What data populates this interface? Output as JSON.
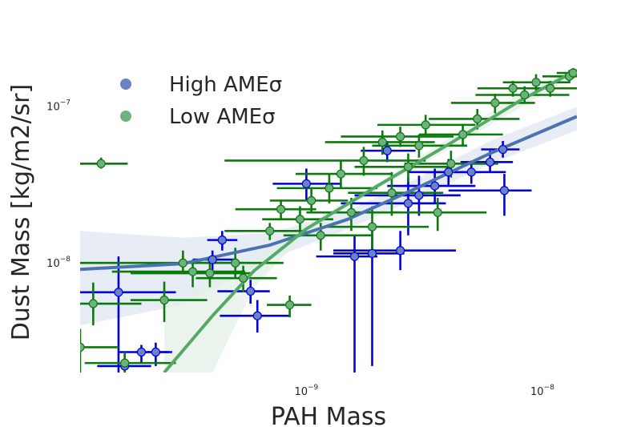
{
  "chart_data": {
    "type": "scatter",
    "xlabel": "PAH Mass",
    "ylabel": "Dust Mass [kg/m2/sr]",
    "xscale": "log",
    "yscale": "log",
    "xlim": [
      1.1e-10,
      1.4e-08
    ],
    "ylim": [
      2e-09,
      1.75e-07
    ],
    "xticks": [
      {
        "value": 1e-09,
        "base": "10",
        "exp": "−9"
      },
      {
        "value": 1e-08,
        "base": "10",
        "exp": "−8"
      }
    ],
    "yticks": [
      {
        "value": 1e-08,
        "base": "10",
        "exp": "−8"
      },
      {
        "value": 1e-07,
        "base": "10",
        "exp": "−7"
      }
    ],
    "grid": false,
    "legend": {
      "position": "top-left"
    },
    "series": [
      {
        "name": "High AMEσ",
        "marker_color": "#6a83c4",
        "errorbar_color": "#0000dd",
        "fit_color": "#4c72b0",
        "band_color": "#dfe5f1",
        "points": [
          {
            "x": 1.6e-10,
            "y": 6.5e-09,
            "xerr": [
              1.1e-10,
              2.8e-10
            ],
            "yerr": [
              2e-09,
              1.1e-08
            ]
          },
          {
            "x": 1.7e-10,
            "y": 2.2e-09,
            "xerr": [
              1.3e-10,
              2.2e-10
            ],
            "yerr": [
              2e-09,
              2.6e-09
            ]
          },
          {
            "x": 2e-10,
            "y": 2.7e-09,
            "xerr": [
              1.6e-10,
              2.6e-10
            ],
            "yerr": [
              2.3e-09,
              3e-09
            ]
          },
          {
            "x": 2.3e-10,
            "y": 2.7e-09,
            "xerr": [
              1.9e-10,
              2.7e-10
            ],
            "yerr": [
              2.2e-09,
              3.1e-09
            ]
          },
          {
            "x": 4.4e-10,
            "y": 1.4e-08,
            "xerr": [
              3.8e-10,
              5.1e-10
            ],
            "yerr": [
              1.2e-08,
              1.6e-08
            ]
          },
          {
            "x": 4e-10,
            "y": 1.05e-08,
            "xerr": [
              3.3e-10,
              5e-10
            ],
            "yerr": [
              9e-09,
              1.2e-08
            ]
          },
          {
            "x": 5.8e-10,
            "y": 6.6e-09,
            "xerr": [
              4.2e-10,
              7e-10
            ],
            "yerr": [
              5.5e-09,
              7.8e-09
            ]
          },
          {
            "x": 6.2e-10,
            "y": 4.6e-09,
            "xerr": [
              4.3e-10,
              8.5e-10
            ],
            "yerr": [
              3.6e-09,
              5.8e-09
            ]
          },
          {
            "x": 1.6e-09,
            "y": 1.1e-08,
            "xerr": [
              1.1e-09,
              2e-09
            ],
            "yerr": [
              2e-09,
              1.5e-08
            ]
          },
          {
            "x": 1.9e-09,
            "y": 1.15e-08,
            "xerr": [
              1.3e-09,
              2.6e-09
            ],
            "yerr": [
              2.2e-09,
              1.6e-08
            ]
          },
          {
            "x": 2.5e-09,
            "y": 1.2e-08,
            "xerr": [
              1.3e-09,
              4.3e-09
            ],
            "yerr": [
              9e-09,
              1.6e-08
            ]
          },
          {
            "x": 2.7e-09,
            "y": 2.4e-08,
            "xerr": [
              1.4e-09,
              3.9e-09
            ],
            "yerr": [
              1.5e-08,
              3.5e-08
            ]
          },
          {
            "x": 3e-09,
            "y": 2.7e-08,
            "xerr": [
              1.6e-09,
              4.5e-09
            ],
            "yerr": [
              2e-08,
              3.6e-08
            ]
          },
          {
            "x": 3.5e-09,
            "y": 3.1e-08,
            "xerr": [
              2.2e-09,
              5.2e-09
            ],
            "yerr": [
              2.4e-08,
              4e-08
            ]
          },
          {
            "x": 4e-09,
            "y": 3.8e-08,
            "xerr": [
              2.7e-09,
              5.5e-09
            ],
            "yerr": [
              3.1e-08,
              4.6e-08
            ]
          },
          {
            "x": 5e-09,
            "y": 3.8e-08,
            "xerr": [
              3.2e-09,
              7e-09
            ],
            "yerr": [
              3.2e-08,
              4.5e-08
            ]
          },
          {
            "x": 6e-09,
            "y": 4.4e-08,
            "xerr": [
              4.5e-09,
              7.5e-09
            ],
            "yerr": [
              3.8e-08,
              5.2e-08
            ]
          },
          {
            "x": 6.8e-09,
            "y": 5.3e-08,
            "xerr": [
              5.5e-09,
              8e-09
            ],
            "yerr": [
              4.7e-08,
              6e-08
            ]
          },
          {
            "x": 6.9e-09,
            "y": 2.9e-08,
            "xerr": [
              4e-09,
              9e-09
            ],
            "yerr": [
              2e-08,
              3.7e-08
            ]
          },
          {
            "x": 1e-09,
            "y": 3.2e-08,
            "xerr": [
              7.2e-10,
              1.4e-09
            ],
            "yerr": [
              2.5e-08,
              4e-08
            ]
          },
          {
            "x": 2.2e-09,
            "y": 5.2e-08,
            "xerr": [
              1.7e-09,
              2.9e-09
            ],
            "yerr": [
              4.4e-08,
              6e-08
            ]
          }
        ],
        "fit_line": [
          {
            "x": 1.1e-10,
            "y": 9.1e-09
          },
          {
            "x": 3e-10,
            "y": 9.9e-09
          },
          {
            "x": 7e-10,
            "y": 1.3e-08
          },
          {
            "x": 1.5e-09,
            "y": 1.9e-08
          },
          {
            "x": 3e-09,
            "y": 3.05e-08
          },
          {
            "x": 6e-09,
            "y": 5e-08
          },
          {
            "x": 1.4e-08,
            "y": 8.6e-08
          }
        ],
        "band_upper": [
          {
            "x": 1.1e-10,
            "y": 1.6e-08
          },
          {
            "x": 3e-10,
            "y": 1.45e-08
          },
          {
            "x": 7e-10,
            "y": 1.55e-08
          },
          {
            "x": 1.5e-09,
            "y": 2.15e-08
          },
          {
            "x": 3e-09,
            "y": 3.5e-08
          },
          {
            "x": 6e-09,
            "y": 6e-08
          },
          {
            "x": 1.4e-08,
            "y": 9.9e-08
          }
        ],
        "band_lower": [
          {
            "x": 1.1e-10,
            "y": 4e-09
          },
          {
            "x": 3e-10,
            "y": 5.4e-09
          },
          {
            "x": 7e-10,
            "y": 1.05e-08
          },
          {
            "x": 1.5e-09,
            "y": 1.65e-08
          },
          {
            "x": 3e-09,
            "y": 2.6e-08
          },
          {
            "x": 6e-09,
            "y": 4.3e-08
          },
          {
            "x": 1.4e-08,
            "y": 7e-08
          }
        ]
      },
      {
        "name": "Low AMEσ",
        "marker_color": "#6fb07f",
        "errorbar_color": "#0a7a0a",
        "fit_color": "#55a868",
        "band_color": "#e3f0e5",
        "points": [
          {
            "x": 1.1e-10,
            "y": 2.9e-09,
            "xerr": [
              1.1e-10,
              1.6e-10
            ],
            "yerr": [
              2e-09,
              3.8e-09
            ]
          },
          {
            "x": 1.25e-10,
            "y": 5.5e-09,
            "xerr": [
              1.1e-10,
              2e-10
            ],
            "yerr": [
              4e-09,
              7.5e-09
            ]
          },
          {
            "x": 1.35e-10,
            "y": 4.3e-08,
            "xerr": [
              1.1e-10,
              1.75e-10
            ],
            "yerr": [
              4e-08,
              4.7e-08
            ]
          },
          {
            "x": 1.7e-10,
            "y": 2.3e-09,
            "xerr": [
              1.15e-10,
              2.8e-10
            ],
            "yerr": [
              2e-09,
              2.7e-09
            ]
          },
          {
            "x": 2.5e-10,
            "y": 5.8e-09,
            "xerr": [
              1.8e-10,
              3.8e-10
            ],
            "yerr": [
              4.2e-09,
              7.6e-09
            ]
          },
          {
            "x": 3e-10,
            "y": 1e-08,
            "xerr": [
              1.1e-10,
              5.8e-10
            ],
            "yerr": [
              8.5e-09,
              1.2e-08
            ]
          },
          {
            "x": 3.3e-10,
            "y": 8.8e-09,
            "xerr": [
              1.5e-10,
              5.5e-10
            ],
            "yerr": [
              7e-09,
              1.05e-08
            ]
          },
          {
            "x": 3.9e-10,
            "y": 8.6e-09,
            "xerr": [
              1.8e-10,
              5.8e-10
            ],
            "yerr": [
              7e-09,
              1.06e-08
            ]
          },
          {
            "x": 5e-10,
            "y": 1e-08,
            "xerr": [
              3e-10,
              8e-10
            ],
            "yerr": [
              8e-09,
              1.25e-08
            ]
          },
          {
            "x": 5.4e-10,
            "y": 8e-09,
            "xerr": [
              3.4e-10,
              7.5e-10
            ],
            "yerr": [
              6.5e-09,
              9.6e-09
            ]
          },
          {
            "x": 7e-10,
            "y": 1.6e-08,
            "xerr": [
              4.5e-10,
              1e-09
            ],
            "yerr": [
              1.4e-08,
              1.8e-08
            ]
          },
          {
            "x": 7.8e-10,
            "y": 2.2e-08,
            "xerr": [
              5e-10,
              1.1e-09
            ],
            "yerr": [
              1.9e-08,
              2.5e-08
            ]
          },
          {
            "x": 8.5e-10,
            "y": 5.4e-09,
            "xerr": [
              6.8e-10,
              1.05e-09
            ],
            "yerr": [
              4.5e-09,
              6.2e-09
            ]
          },
          {
            "x": 9.4e-10,
            "y": 1.9e-08,
            "xerr": [
              6.5e-10,
              1.3e-09
            ],
            "yerr": [
              1.5e-08,
              2.3e-08
            ]
          },
          {
            "x": 1.05e-09,
            "y": 2.5e-08,
            "xerr": [
              7e-10,
              1.5e-09
            ],
            "yerr": [
              2.1e-08,
              3e-08
            ]
          },
          {
            "x": 1.15e-09,
            "y": 1.5e-08,
            "xerr": [
              8e-10,
              1.9e-09
            ],
            "yerr": [
              1.2e-08,
              1.8e-08
            ]
          },
          {
            "x": 1.25e-09,
            "y": 3e-08,
            "xerr": [
              7.5e-10,
              2e-09
            ],
            "yerr": [
              2.4e-08,
              3.7e-08
            ]
          },
          {
            "x": 1.4e-09,
            "y": 3.7e-08,
            "xerr": [
              9e-10,
              2.3e-09
            ],
            "yerr": [
              3e-08,
              4.5e-08
            ]
          },
          {
            "x": 1.55e-09,
            "y": 2.1e-08,
            "xerr": [
              1e-09,
              2.5e-09
            ],
            "yerr": [
              1.6e-08,
              2.6e-08
            ]
          },
          {
            "x": 1.75e-09,
            "y": 4.5e-08,
            "xerr": [
              4.5e-10,
              3.2e-09
            ],
            "yerr": [
              3.6e-08,
              5.5e-08
            ]
          },
          {
            "x": 1.9e-09,
            "y": 1.7e-08,
            "xerr": [
              1.2e-09,
              3.3e-09
            ],
            "yerr": [
              1.1e-08,
              2.3e-08
            ]
          },
          {
            "x": 2.1e-09,
            "y": 5.9e-08,
            "xerr": [
              1.2e-09,
              3.5e-09
            ],
            "yerr": [
              4.9e-08,
              7e-08
            ]
          },
          {
            "x": 2.3e-09,
            "y": 2.8e-08,
            "xerr": [
              1.5e-09,
              3.8e-09
            ],
            "yerr": [
              2e-08,
              3.8e-08
            ]
          },
          {
            "x": 2.5e-09,
            "y": 6.4e-08,
            "xerr": [
              1.4e-09,
              4.2e-09
            ],
            "yerr": [
              5.5e-08,
              7.4e-08
            ]
          },
          {
            "x": 2.7e-09,
            "y": 4.1e-08,
            "xerr": [
              1.6e-09,
              4.2e-09
            ],
            "yerr": [
              3.3e-08,
              5e-08
            ]
          },
          {
            "x": 3e-09,
            "y": 5.6e-08,
            "xerr": [
              1.9e-09,
              4.8e-09
            ],
            "yerr": [
              4.7e-08,
              6.6e-08
            ]
          },
          {
            "x": 3.2e-09,
            "y": 7.6e-08,
            "xerr": [
              2e-09,
              5.2e-09
            ],
            "yerr": [
              6.5e-08,
              8.8e-08
            ]
          },
          {
            "x": 3.6e-09,
            "y": 2.1e-08,
            "xerr": [
              2.3e-09,
              5.8e-09
            ],
            "yerr": [
              1.6e-08,
              2.6e-08
            ]
          },
          {
            "x": 4.1e-09,
            "y": 4.3e-08,
            "xerr": [
              2.6e-09,
              6.5e-09
            ],
            "yerr": [
              3.5e-08,
              5.2e-08
            ]
          },
          {
            "x": 4.6e-09,
            "y": 6.6e-08,
            "xerr": [
              3e-09,
              6.8e-09
            ],
            "yerr": [
              5.6e-08,
              7.7e-08
            ]
          },
          {
            "x": 5.3e-09,
            "y": 8.3e-08,
            "xerr": [
              3.3e-09,
              8e-09
            ],
            "yerr": [
              7.1e-08,
              9.6e-08
            ]
          },
          {
            "x": 6.3e-09,
            "y": 1.05e-07,
            "xerr": [
              4.1e-09,
              9.3e-09
            ],
            "yerr": [
              9e-08,
              1.2e-07
            ]
          },
          {
            "x": 7.5e-09,
            "y": 1.3e-07,
            "xerr": [
              5.3e-09,
              1.1e-08
            ],
            "yerr": [
              1.15e-07,
              1.45e-07
            ]
          },
          {
            "x": 8.4e-09,
            "y": 1.18e-07,
            "xerr": [
              5.2e-09,
              1.3e-08
            ],
            "yerr": [
              1.04e-07,
              1.34e-07
            ]
          },
          {
            "x": 9.4e-09,
            "y": 1.42e-07,
            "xerr": [
              6.8e-09,
              1.3e-08
            ],
            "yerr": [
              1.25e-07,
              1.6e-07
            ]
          },
          {
            "x": 1.08e-08,
            "y": 1.3e-07,
            "xerr": [
              8e-09,
              1.4e-08
            ],
            "yerr": [
              1.15e-07,
              1.45e-07
            ]
          },
          {
            "x": 1.3e-08,
            "y": 1.55e-07,
            "xerr": [
              1e-08,
              1.4e-08
            ],
            "yerr": [
              1.4e-07,
              1.7e-07
            ]
          },
          {
            "x": 1.35e-08,
            "y": 1.63e-07,
            "xerr": [
              1.15e-08,
              1.4e-08
            ],
            "yerr": [
              1.5e-07,
              1.75e-07
            ]
          }
        ],
        "fit_line": [
          {
            "x": 2.5e-10,
            "y": 2e-09
          },
          {
            "x": 4e-10,
            "y": 4.6e-09
          },
          {
            "x": 6e-10,
            "y": 8.9e-09
          },
          {
            "x": 1e-09,
            "y": 1.65e-08
          },
          {
            "x": 2e-09,
            "y": 3.1e-08
          },
          {
            "x": 4e-09,
            "y": 5.7e-08
          },
          {
            "x": 8e-09,
            "y": 1.08e-07
          },
          {
            "x": 1.4e-08,
            "y": 1.7e-07
          }
        ],
        "band_upper": [
          {
            "x": 2.5e-10,
            "y": 5e-09
          },
          {
            "x": 4e-10,
            "y": 7.6e-09
          },
          {
            "x": 6e-10,
            "y": 1.05e-08
          },
          {
            "x": 1e-09,
            "y": 1.75e-08
          },
          {
            "x": 2e-09,
            "y": 3.25e-08
          },
          {
            "x": 4e-09,
            "y": 6.2e-08
          },
          {
            "x": 8e-09,
            "y": 1.2e-07
          },
          {
            "x": 1.4e-08,
            "y": 1.75e-07
          }
        ],
        "band_lower": [
          {
            "x": 2.5e-10,
            "y": 2e-09
          },
          {
            "x": 4e-10,
            "y": 2e-09
          },
          {
            "x": 6e-10,
            "y": 7e-09
          },
          {
            "x": 1e-09,
            "y": 1.55e-08
          },
          {
            "x": 2e-09,
            "y": 2.95e-08
          },
          {
            "x": 4e-09,
            "y": 5.3e-08
          },
          {
            "x": 8e-09,
            "y": 9.7e-08
          },
          {
            "x": 1.4e-08,
            "y": 1.6e-07
          }
        ]
      }
    ]
  }
}
